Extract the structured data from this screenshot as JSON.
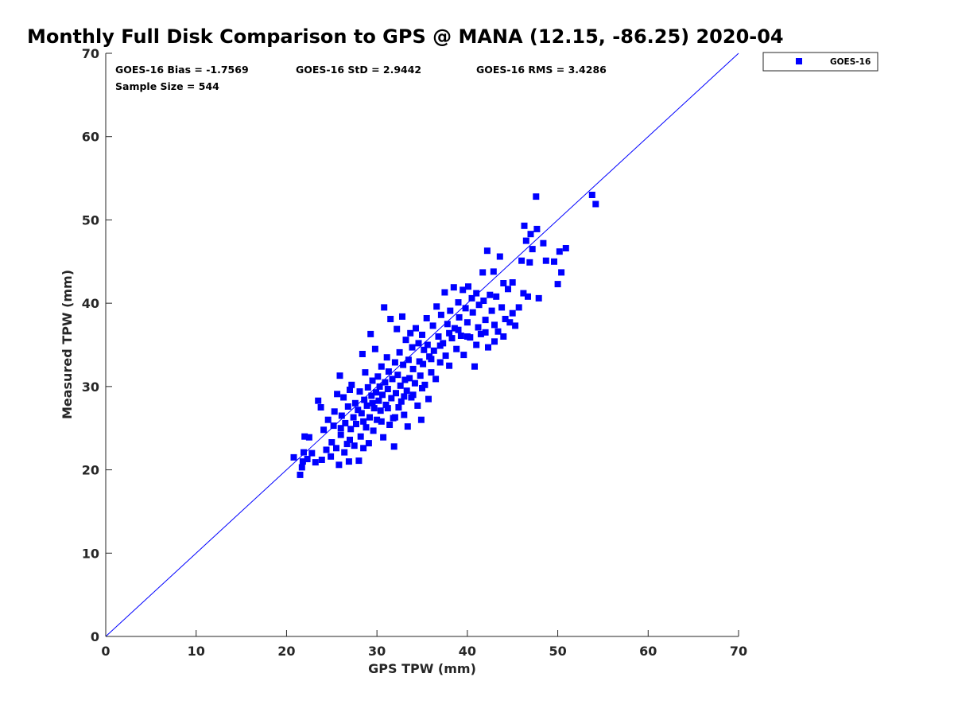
{
  "chart_data": {
    "type": "scatter",
    "title": "Monthly Full Disk Comparison to GPS @ MANA (12.15, -86.25) 2020-04",
    "xlabel": "GPS TPW (mm)",
    "ylabel": "Measured TPW (mm)",
    "xlim": [
      0,
      70
    ],
    "ylim": [
      0,
      70
    ],
    "xticks": [
      "0",
      "10",
      "20",
      "30",
      "40",
      "50",
      "60",
      "70"
    ],
    "yticks": [
      "0",
      "10",
      "20",
      "30",
      "40",
      "50",
      "60",
      "70"
    ],
    "grid": false,
    "legend_position": "top-right-outside",
    "reference_line": {
      "x": [
        0,
        70
      ],
      "y": [
        0,
        70
      ],
      "color": "#0000ff"
    },
    "stats": {
      "bias": "GOES-16 Bias = -1.7569",
      "std": "GOES-16 StD = 2.9442",
      "rms": "GOES-16 RMS = 3.4286",
      "sample": "Sample Size = 544"
    },
    "series": [
      {
        "name": "GOES-16",
        "color": "#0000ff",
        "marker": "square",
        "points": [
          [
            20.8,
            21.5
          ],
          [
            21.5,
            19.4
          ],
          [
            21.7,
            20.3
          ],
          [
            21.8,
            21.0
          ],
          [
            21.9,
            22.1
          ],
          [
            22.0,
            24.0
          ],
          [
            22.3,
            21.3
          ],
          [
            22.5,
            23.9
          ],
          [
            22.8,
            22.0
          ],
          [
            23.2,
            20.9
          ],
          [
            23.5,
            28.3
          ],
          [
            23.8,
            27.5
          ],
          [
            23.9,
            21.2
          ],
          [
            24.1,
            24.8
          ],
          [
            24.4,
            22.4
          ],
          [
            24.6,
            26.0
          ],
          [
            24.9,
            21.6
          ],
          [
            25.0,
            23.3
          ],
          [
            25.2,
            25.3
          ],
          [
            25.3,
            27.0
          ],
          [
            25.5,
            22.6
          ],
          [
            25.6,
            29.1
          ],
          [
            25.8,
            20.6
          ],
          [
            25.9,
            31.3
          ],
          [
            26.0,
            24.2
          ],
          [
            26.1,
            26.5
          ],
          [
            26.3,
            28.7
          ],
          [
            26.4,
            22.1
          ],
          [
            26.5,
            25.6
          ],
          [
            26.7,
            23.1
          ],
          [
            26.8,
            27.6
          ],
          [
            26.9,
            21.0
          ],
          [
            27.0,
            29.6
          ],
          [
            27.1,
            24.9
          ],
          [
            27.2,
            30.2
          ],
          [
            27.4,
            26.3
          ],
          [
            27.5,
            22.9
          ],
          [
            27.6,
            28.0
          ],
          [
            27.7,
            25.5
          ],
          [
            27.9,
            27.2
          ],
          [
            28.0,
            21.1
          ],
          [
            28.1,
            29.4
          ],
          [
            28.2,
            24.0
          ],
          [
            28.3,
            26.8
          ],
          [
            28.4,
            33.9
          ],
          [
            28.5,
            22.6
          ],
          [
            28.6,
            28.4
          ],
          [
            28.7,
            31.7
          ],
          [
            28.8,
            25.1
          ],
          [
            28.9,
            27.7
          ],
          [
            29.0,
            29.9
          ],
          [
            29.1,
            23.2
          ],
          [
            29.2,
            26.3
          ],
          [
            29.3,
            36.3
          ],
          [
            29.4,
            28.9
          ],
          [
            29.5,
            30.7
          ],
          [
            29.6,
            24.7
          ],
          [
            29.7,
            27.4
          ],
          [
            29.8,
            34.5
          ],
          [
            29.9,
            29.3
          ],
          [
            30.0,
            26.0
          ],
          [
            30.1,
            31.2
          ],
          [
            30.2,
            28.3
          ],
          [
            30.3,
            30.0
          ],
          [
            30.4,
            27.1
          ],
          [
            30.5,
            32.4
          ],
          [
            30.6,
            29.0
          ],
          [
            30.7,
            23.9
          ],
          [
            30.8,
            39.5
          ],
          [
            30.9,
            30.5
          ],
          [
            31.0,
            27.8
          ],
          [
            31.1,
            33.5
          ],
          [
            31.2,
            29.7
          ],
          [
            31.3,
            31.8
          ],
          [
            31.4,
            25.4
          ],
          [
            31.5,
            38.1
          ],
          [
            31.6,
            28.6
          ],
          [
            31.7,
            30.9
          ],
          [
            31.8,
            26.2
          ],
          [
            31.9,
            22.8
          ],
          [
            32.0,
            32.9
          ],
          [
            32.1,
            29.2
          ],
          [
            32.2,
            36.9
          ],
          [
            32.3,
            31.4
          ],
          [
            32.4,
            27.5
          ],
          [
            32.5,
            34.1
          ],
          [
            32.6,
            30.1
          ],
          [
            32.7,
            28.2
          ],
          [
            32.8,
            38.4
          ],
          [
            32.9,
            32.6
          ],
          [
            33.0,
            26.6
          ],
          [
            33.1,
            30.8
          ],
          [
            33.2,
            35.6
          ],
          [
            33.3,
            29.5
          ],
          [
            33.4,
            25.2
          ],
          [
            33.5,
            33.2
          ],
          [
            33.6,
            31.0
          ],
          [
            33.7,
            36.4
          ],
          [
            33.8,
            28.7
          ],
          [
            33.9,
            34.7
          ],
          [
            34.0,
            32.1
          ],
          [
            34.2,
            30.4
          ],
          [
            34.3,
            37.0
          ],
          [
            34.5,
            27.7
          ],
          [
            34.6,
            35.2
          ],
          [
            34.7,
            33.0
          ],
          [
            34.8,
            31.3
          ],
          [
            34.9,
            26.0
          ],
          [
            35.0,
            36.2
          ],
          [
            35.1,
            32.7
          ],
          [
            35.2,
            34.4
          ],
          [
            35.3,
            30.2
          ],
          [
            35.5,
            38.2
          ],
          [
            35.6,
            35.0
          ],
          [
            35.7,
            28.5
          ],
          [
            35.8,
            33.6
          ],
          [
            36.0,
            31.7
          ],
          [
            36.2,
            37.3
          ],
          [
            36.3,
            34.3
          ],
          [
            36.5,
            30.9
          ],
          [
            36.6,
            39.6
          ],
          [
            36.8,
            36.0
          ],
          [
            37.0,
            32.9
          ],
          [
            37.1,
            38.6
          ],
          [
            37.3,
            35.2
          ],
          [
            37.5,
            41.3
          ],
          [
            37.6,
            33.7
          ],
          [
            37.8,
            37.5
          ],
          [
            38.0,
            32.5
          ],
          [
            38.1,
            39.1
          ],
          [
            38.3,
            35.8
          ],
          [
            38.5,
            41.9
          ],
          [
            38.6,
            37.0
          ],
          [
            38.8,
            34.5
          ],
          [
            39.0,
            40.1
          ],
          [
            39.1,
            38.3
          ],
          [
            39.3,
            36.1
          ],
          [
            39.5,
            41.6
          ],
          [
            39.6,
            33.8
          ],
          [
            39.8,
            39.4
          ],
          [
            40.0,
            37.7
          ],
          [
            40.1,
            42.0
          ],
          [
            40.3,
            35.9
          ],
          [
            40.5,
            40.6
          ],
          [
            40.6,
            38.9
          ],
          [
            40.8,
            32.4
          ],
          [
            41.0,
            41.2
          ],
          [
            41.2,
            37.1
          ],
          [
            41.3,
            39.8
          ],
          [
            41.5,
            36.3
          ],
          [
            41.7,
            43.7
          ],
          [
            41.8,
            40.3
          ],
          [
            42.0,
            38.0
          ],
          [
            42.2,
            46.3
          ],
          [
            42.3,
            34.7
          ],
          [
            42.5,
            41.0
          ],
          [
            42.7,
            39.1
          ],
          [
            42.9,
            43.8
          ],
          [
            43.0,
            37.4
          ],
          [
            43.2,
            40.8
          ],
          [
            43.4,
            36.6
          ],
          [
            43.6,
            45.6
          ],
          [
            43.8,
            39.5
          ],
          [
            44.0,
            42.4
          ],
          [
            44.2,
            38.1
          ],
          [
            44.5,
            41.7
          ],
          [
            44.7,
            37.7
          ],
          [
            45.0,
            42.5
          ],
          [
            45.3,
            37.3
          ],
          [
            45.7,
            39.5
          ],
          [
            46.0,
            45.1
          ],
          [
            46.2,
            41.2
          ],
          [
            46.3,
            49.3
          ],
          [
            46.5,
            47.5
          ],
          [
            46.7,
            40.8
          ],
          [
            46.9,
            44.9
          ],
          [
            47.0,
            48.3
          ],
          [
            47.2,
            46.5
          ],
          [
            47.6,
            52.8
          ],
          [
            47.7,
            48.9
          ],
          [
            47.9,
            40.6
          ],
          [
            48.4,
            47.2
          ],
          [
            48.7,
            45.1
          ],
          [
            49.6,
            45.0
          ],
          [
            50.0,
            42.3
          ],
          [
            50.2,
            46.2
          ],
          [
            50.4,
            43.7
          ],
          [
            50.9,
            46.6
          ],
          [
            53.8,
            53.0
          ],
          [
            54.2,
            51.9
          ],
          [
            26.0,
            25.0
          ],
          [
            27.0,
            23.6
          ],
          [
            28.5,
            25.8
          ],
          [
            29.5,
            28.0
          ],
          [
            30.5,
            25.8
          ],
          [
            31.2,
            27.4
          ],
          [
            32.0,
            26.3
          ],
          [
            33.0,
            28.8
          ],
          [
            34.0,
            29.0
          ],
          [
            35.0,
            29.8
          ],
          [
            36.0,
            33.3
          ],
          [
            37.0,
            34.9
          ],
          [
            38.0,
            36.4
          ],
          [
            39.0,
            36.8
          ],
          [
            40.0,
            36.0
          ],
          [
            41.0,
            35.0
          ],
          [
            42.0,
            36.5
          ],
          [
            43.0,
            35.4
          ],
          [
            44.0,
            36.0
          ],
          [
            45.0,
            38.8
          ]
        ]
      }
    ]
  }
}
